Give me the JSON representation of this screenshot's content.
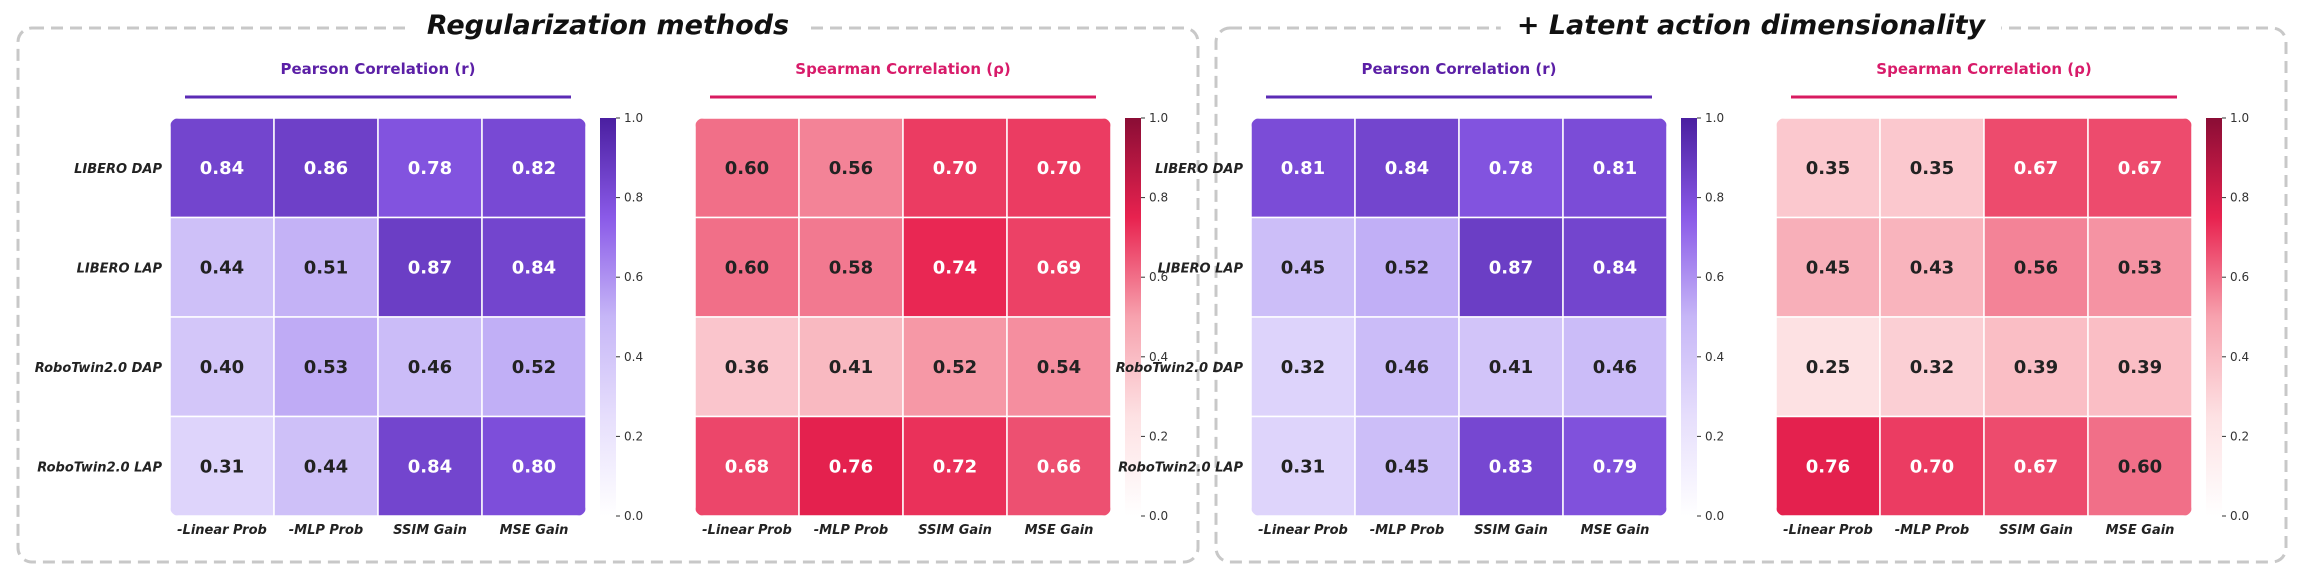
{
  "sections": [
    {
      "title": "Regularization methods"
    },
    {
      "title": "+ Latent action dimensionality"
    }
  ],
  "colors": {
    "pearson_title": "#5b1fa6",
    "pearson_line": "#5b2bb5",
    "spearman_title": "#d81b6a",
    "spearman_line": "#d81b60",
    "frame": "#c8c8c8",
    "purple_scale": [
      "#ffffff",
      "#e6defc",
      "#c6b6f7",
      "#8a5ae8",
      "#4a1fa0"
    ],
    "red_scale": [
      "#ffffff",
      "#fde1e3",
      "#f7a2ae",
      "#e8224f",
      "#8a0d35"
    ]
  },
  "colorbar_ticks": [
    "0.0",
    "0.2",
    "0.4",
    "0.6",
    "0.8",
    "1.0"
  ],
  "chart_data": [
    {
      "type": "heatmap",
      "section": 0,
      "title": "Pearson Correlation (r)",
      "palette": "purple",
      "rows": [
        "LIBERO DAP",
        "LIBERO LAP",
        "RoboTwin2.0 DAP",
        "RoboTwin2.0 LAP"
      ],
      "cols": [
        "-Linear Prob",
        "-MLP Prob",
        "SSIM Gain",
        "MSE Gain"
      ],
      "values": [
        [
          0.84,
          0.86,
          0.78,
          0.82
        ],
        [
          0.44,
          0.51,
          0.87,
          0.84
        ],
        [
          0.4,
          0.53,
          0.46,
          0.52
        ],
        [
          0.31,
          0.44,
          0.84,
          0.8
        ]
      ],
      "labels": [
        [
          "0.84",
          "0.86",
          "0.78",
          "0.82"
        ],
        [
          "0.44",
          "0.51",
          "0.87",
          "0.84"
        ],
        [
          "0.40",
          "0.53",
          "0.46",
          "0.52"
        ],
        [
          "0.31",
          "0.44",
          "0.84",
          "0.80"
        ]
      ],
      "vmin": 0,
      "vmax": 1
    },
    {
      "type": "heatmap",
      "section": 0,
      "title": "Spearman Correlation (ρ)",
      "palette": "red",
      "rows": [
        "LIBERO DAP",
        "LIBERO LAP",
        "RoboTwin2.0 DAP",
        "RoboTwin2.0 LAP"
      ],
      "cols": [
        "-Linear Prob",
        "-MLP Prob",
        "SSIM Gain",
        "MSE Gain"
      ],
      "values": [
        [
          0.6,
          0.56,
          0.7,
          0.7
        ],
        [
          0.6,
          0.58,
          0.74,
          0.69
        ],
        [
          0.36,
          0.41,
          0.52,
          0.54
        ],
        [
          0.68,
          0.76,
          0.72,
          0.66
        ]
      ],
      "labels": [
        [
          "0.60",
          "0.56",
          "0.70",
          "0.70"
        ],
        [
          "0.60",
          "0.58",
          "0.74",
          "0.69"
        ],
        [
          "0.36",
          "0.41",
          "0.52",
          "0.54"
        ],
        [
          "0.68",
          "0.76",
          "0.72",
          "0.66"
        ]
      ],
      "vmin": 0,
      "vmax": 1
    },
    {
      "type": "heatmap",
      "section": 1,
      "title": "Pearson Correlation (r)",
      "palette": "purple",
      "rows": [
        "LIBERO DAP",
        "LIBERO LAP",
        "RoboTwin2.0 DAP",
        "RoboTwin2.0 LAP"
      ],
      "cols": [
        "-Linear Prob",
        "-MLP Prob",
        "SSIM Gain",
        "MSE Gain"
      ],
      "values": [
        [
          0.81,
          0.84,
          0.78,
          0.81
        ],
        [
          0.45,
          0.52,
          0.87,
          0.84
        ],
        [
          0.32,
          0.46,
          0.41,
          0.46
        ],
        [
          0.31,
          0.45,
          0.83,
          0.79
        ]
      ],
      "labels": [
        [
          "0.81",
          "0.84",
          "0.78",
          "0.81"
        ],
        [
          "0.45",
          "0.52",
          "0.87",
          "0.84"
        ],
        [
          "0.32",
          "0.46",
          "0.41",
          "0.46"
        ],
        [
          "0.31",
          "0.45",
          "0.83",
          "0.79"
        ]
      ],
      "vmin": 0,
      "vmax": 1
    },
    {
      "type": "heatmap",
      "section": 1,
      "title": "Spearman Correlation (ρ)",
      "palette": "red",
      "rows": [
        "LIBERO DAP",
        "LIBERO LAP",
        "RoboTwin2.0 DAP",
        "RoboTwin2.0 LAP"
      ],
      "cols": [
        "-Linear Prob",
        "-MLP Prob",
        "SSIM Gain",
        "MSE Gain"
      ],
      "values": [
        [
          0.35,
          0.35,
          0.67,
          0.67
        ],
        [
          0.45,
          0.43,
          0.56,
          0.53
        ],
        [
          0.25,
          0.32,
          0.39,
          0.39
        ],
        [
          0.76,
          0.7,
          0.67,
          0.6
        ]
      ],
      "labels": [
        [
          "0.35",
          "0.35",
          "0.67",
          "0.67"
        ],
        [
          "0.45",
          "0.43",
          "0.56",
          "0.53"
        ],
        [
          "0.25",
          "0.32",
          "0.39",
          "0.39"
        ],
        [
          "0.76",
          "0.70",
          "0.67",
          "0.60"
        ]
      ],
      "vmin": 0,
      "vmax": 1
    }
  ]
}
